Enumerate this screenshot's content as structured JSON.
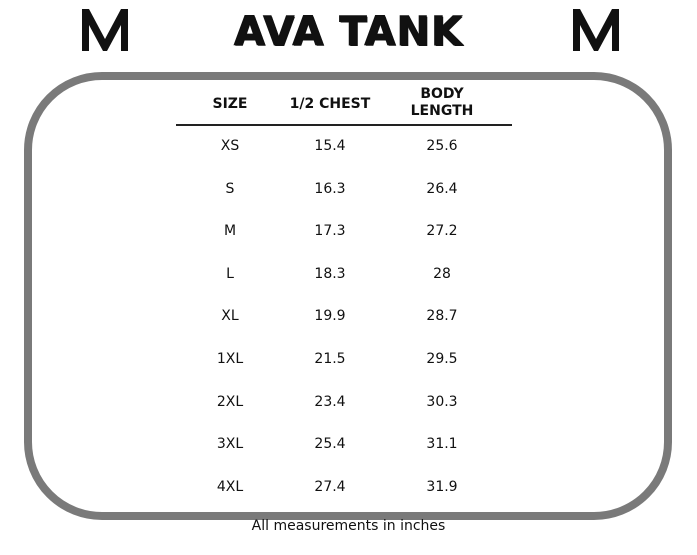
{
  "title": "AVA TANK",
  "columns": [
    {
      "line1": "SIZE",
      "line2": ""
    },
    {
      "line1": "1/2 CHEST",
      "line2": ""
    },
    {
      "line1": "BODY",
      "line2": "LENGTH"
    }
  ],
  "rows": [
    {
      "size": "XS",
      "chest": "15.4",
      "length": "25.6"
    },
    {
      "size": "S",
      "chest": "16.3",
      "length": "26.4"
    },
    {
      "size": "M",
      "chest": "17.3",
      "length": "27.2"
    },
    {
      "size": "L",
      "chest": "18.3",
      "length": "28"
    },
    {
      "size": "XL",
      "chest": "19.9",
      "length": "28.7"
    },
    {
      "size": "1XL",
      "chest": "21.5",
      "length": "29.5"
    },
    {
      "size": "2XL",
      "chest": "23.4",
      "length": "30.3"
    },
    {
      "size": "3XL",
      "chest": "25.4",
      "length": "31.1"
    },
    {
      "size": "4XL",
      "chest": "27.4",
      "length": "31.9"
    }
  ],
  "footnote": "All measurements in inches",
  "colors": {
    "frame": "#7a7a7a",
    "text": "#111111"
  },
  "icons": {
    "logo": "v-brand-logo-icon"
  }
}
